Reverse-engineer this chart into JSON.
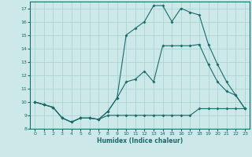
{
  "xlabel": "Humidex (Indice chaleur)",
  "xlim": [
    -0.5,
    23.5
  ],
  "ylim": [
    8,
    17.5
  ],
  "yticks": [
    8,
    9,
    10,
    11,
    12,
    13,
    14,
    15,
    16,
    17
  ],
  "xticks": [
    0,
    1,
    2,
    3,
    4,
    5,
    6,
    7,
    8,
    9,
    10,
    11,
    12,
    13,
    14,
    15,
    16,
    17,
    18,
    19,
    20,
    21,
    22,
    23
  ],
  "bg_color": "#cce8e8",
  "line_color": "#1a6b6b",
  "line1_x": [
    0,
    1,
    2,
    3,
    4,
    5,
    6,
    7,
    8,
    9,
    10,
    11,
    12,
    13,
    14,
    15,
    16,
    17,
    18,
    19,
    20,
    21,
    22,
    23
  ],
  "line1_y": [
    10,
    9.8,
    9.6,
    8.8,
    8.5,
    8.8,
    8.8,
    8.7,
    9.0,
    9.0,
    9.0,
    9.0,
    9.0,
    9.0,
    9.0,
    9.0,
    9.0,
    9.0,
    9.5,
    9.5,
    9.5,
    9.5,
    9.5,
    9.5
  ],
  "line2_x": [
    0,
    1,
    2,
    3,
    4,
    5,
    6,
    7,
    8,
    9,
    10,
    11,
    12,
    13,
    14,
    15,
    16,
    17,
    18,
    19,
    20,
    21,
    22,
    23
  ],
  "line2_y": [
    10,
    9.8,
    9.6,
    8.8,
    8.5,
    8.8,
    8.8,
    8.7,
    9.3,
    10.3,
    11.5,
    11.7,
    12.3,
    11.5,
    14.2,
    14.2,
    14.2,
    14.2,
    14.3,
    12.8,
    11.5,
    10.8,
    10.5,
    9.5
  ],
  "line3_x": [
    0,
    1,
    2,
    3,
    4,
    5,
    6,
    7,
    8,
    9,
    10,
    11,
    12,
    13,
    14,
    15,
    16,
    17,
    18,
    19,
    20,
    21,
    22,
    23
  ],
  "line3_y": [
    10,
    9.8,
    9.6,
    8.8,
    8.5,
    8.8,
    8.8,
    8.7,
    9.3,
    10.3,
    15.0,
    15.5,
    16.0,
    17.2,
    17.2,
    16.0,
    17.0,
    16.7,
    16.5,
    14.3,
    12.8,
    11.5,
    10.5,
    9.5
  ],
  "grid_color": "#a8d0d0",
  "marker": "D",
  "markersize": 2.0,
  "linewidth": 0.8
}
